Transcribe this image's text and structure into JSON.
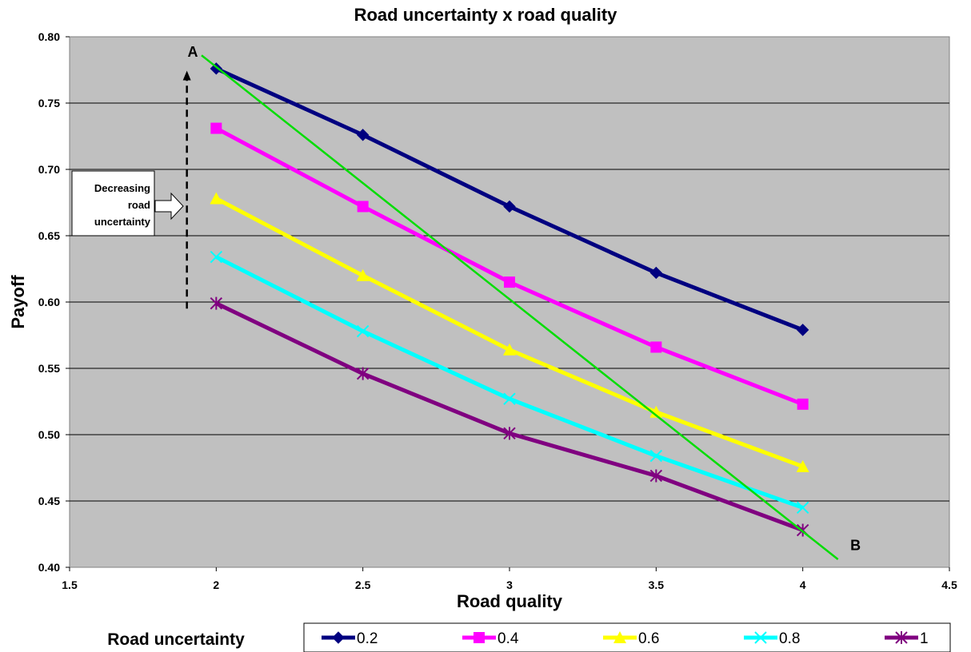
{
  "chart_data": {
    "type": "line",
    "title": "Road uncertainty x road quality",
    "xlabel": "Road quality",
    "ylabel": "Payoff",
    "xlim": [
      1.5,
      4.5
    ],
    "ylim": [
      0.4,
      0.8
    ],
    "xticks": [
      "1.5",
      "2",
      "2.5",
      "3",
      "3.5",
      "4",
      "4.5"
    ],
    "yticks": [
      "0.40",
      "0.45",
      "0.50",
      "0.55",
      "0.60",
      "0.65",
      "0.70",
      "0.75",
      "0.80"
    ],
    "grid": true,
    "plot_background": "#c0c0c0",
    "x": [
      2,
      2.5,
      3,
      3.5,
      4
    ],
    "legend_title": "Road uncertainty",
    "legend_position": "bottom",
    "series": [
      {
        "name": "0.2",
        "values": [
          0.776,
          0.726,
          0.672,
          0.622,
          0.579
        ],
        "color": "#000080",
        "marker": "diamond"
      },
      {
        "name": "0.4",
        "values": [
          0.731,
          0.672,
          0.615,
          0.566,
          0.523
        ],
        "color": "#ff00ff",
        "marker": "square"
      },
      {
        "name": "0.6",
        "values": [
          0.678,
          0.62,
          0.564,
          0.517,
          0.476
        ],
        "color": "#ffff00",
        "marker": "triangle"
      },
      {
        "name": "0.8",
        "values": [
          0.634,
          0.578,
          0.527,
          0.484,
          0.445
        ],
        "color": "#00ffff",
        "marker": "x"
      },
      {
        "name": "1",
        "values": [
          0.599,
          0.546,
          0.501,
          0.469,
          0.428
        ],
        "color": "#800080",
        "marker": "star"
      }
    ],
    "trend_line": {
      "points": [
        [
          1.95,
          0.786
        ],
        [
          4.12,
          0.406
        ]
      ],
      "color": "#00dd00"
    },
    "point_labels": [
      {
        "text": "A",
        "x": 1.92,
        "y": 0.785
      },
      {
        "text": "B",
        "x": 4.18,
        "y": 0.413
      }
    ],
    "annotation": {
      "lines": [
        "Decreasing",
        "road",
        "uncertainty"
      ],
      "arrow_x": 1.9,
      "arrow_from_y": 0.595,
      "arrow_to_y": 0.772
    }
  }
}
